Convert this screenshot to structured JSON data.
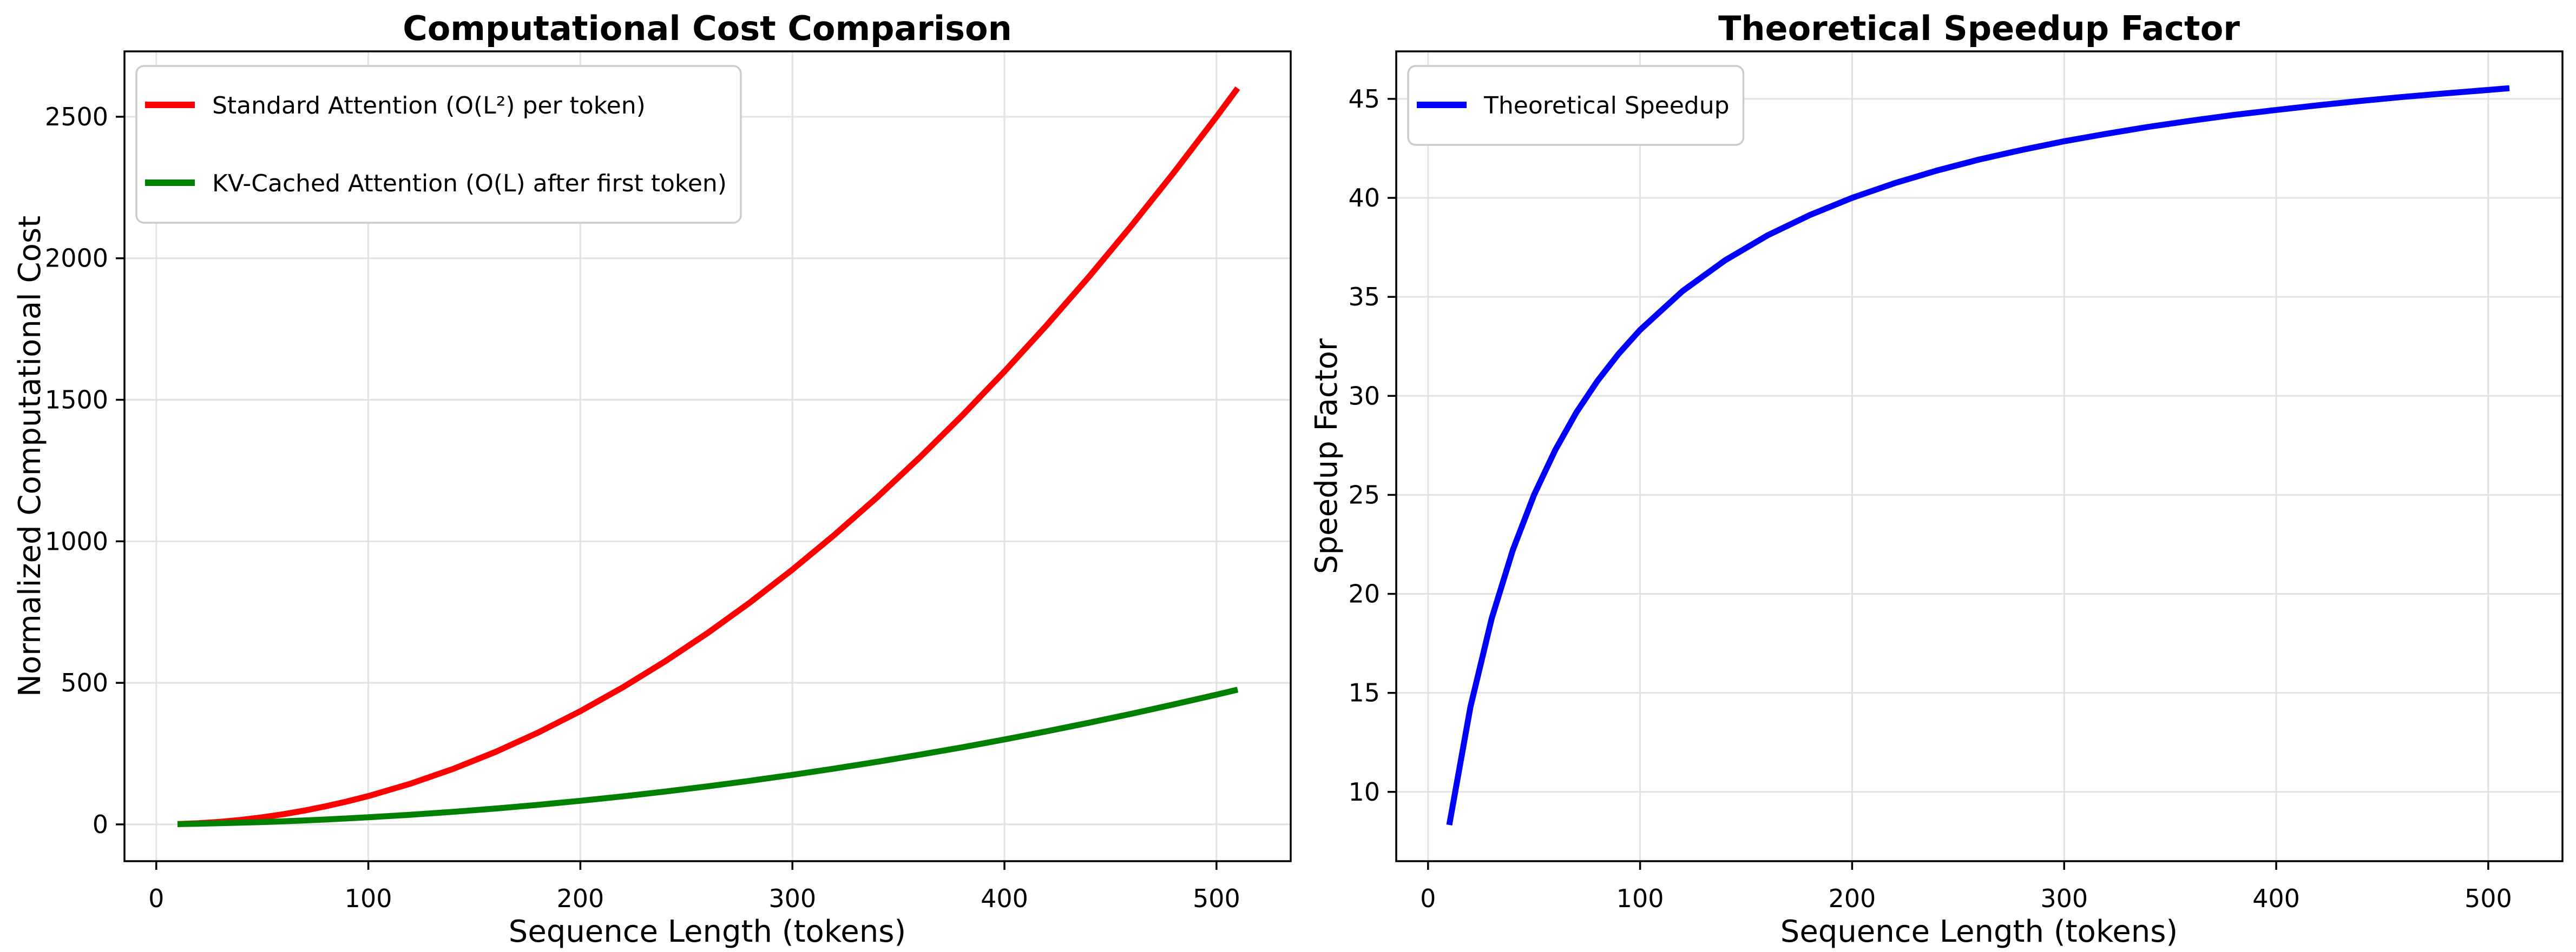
{
  "figure": {
    "background": "#ffffff",
    "grid_color": "#e2e2e2",
    "spine_color": "#000000",
    "text_color": "#000000"
  },
  "chart_data": [
    {
      "id": "computational-cost",
      "type": "line",
      "title": "Computational Cost Comparison",
      "xlabel": "Sequence Length (tokens)",
      "ylabel": "Normalized Computational Cost",
      "xlim": [
        -15,
        535
      ],
      "ylim": [
        -130,
        2731
      ],
      "xticks": [
        0,
        100,
        200,
        300,
        400,
        500
      ],
      "yticks": [
        0,
        500,
        1000,
        1500,
        2000,
        2500
      ],
      "grid": true,
      "legend_position": "upper-left",
      "x": [
        10,
        20,
        30,
        40,
        50,
        60,
        70,
        80,
        90,
        100,
        120,
        140,
        160,
        180,
        200,
        220,
        240,
        260,
        280,
        300,
        320,
        340,
        360,
        380,
        400,
        420,
        440,
        460,
        480,
        500,
        510
      ],
      "series": [
        {
          "name": "Standard Attention (O(L²) per token)",
          "color": "#ff0000",
          "values": [
            1,
            4,
            9,
            16,
            25,
            36,
            49,
            64,
            81,
            100,
            144,
            196,
            256,
            324,
            400,
            484,
            576,
            676,
            784,
            900,
            1024,
            1156,
            1296,
            1444,
            1600,
            1764,
            1936,
            2116,
            2304,
            2500,
            2601
          ]
        },
        {
          "name": "KV-Cached Attention (O(L) after first token)",
          "color": "#008000",
          "values": [
            1,
            2.3,
            4,
            6,
            8.3,
            11,
            14,
            17.3,
            21,
            25,
            34,
            44.3,
            56,
            69,
            83.3,
            99,
            116,
            134.3,
            154,
            175,
            197.3,
            221,
            246,
            272.3,
            300,
            329,
            359.3,
            391,
            424,
            458.3,
            476
          ]
        }
      ]
    },
    {
      "id": "speedup-factor",
      "type": "line",
      "title": "Theoretical Speedup Factor",
      "xlabel": "Sequence Length (tokens)",
      "ylabel": "Speedup Factor",
      "xlim": [
        -15,
        535
      ],
      "ylim": [
        6.5,
        47.4
      ],
      "xticks": [
        0,
        100,
        200,
        300,
        400,
        500
      ],
      "yticks": [
        10,
        15,
        20,
        25,
        30,
        35,
        40,
        45
      ],
      "grid": true,
      "legend_position": "upper-left",
      "x": [
        10,
        20,
        30,
        40,
        50,
        60,
        70,
        80,
        90,
        100,
        120,
        140,
        160,
        180,
        200,
        220,
        240,
        260,
        280,
        300,
        320,
        340,
        360,
        380,
        400,
        420,
        440,
        460,
        480,
        500,
        510
      ],
      "series": [
        {
          "name": "Theoretical Speedup",
          "color": "#0000ff",
          "values": [
            8.33,
            14.29,
            18.75,
            22.22,
            25.0,
            27.27,
            29.17,
            30.77,
            32.14,
            33.33,
            35.29,
            36.84,
            38.1,
            39.13,
            40.0,
            40.74,
            41.38,
            41.94,
            42.42,
            42.86,
            43.24,
            43.59,
            43.9,
            44.19,
            44.44,
            44.68,
            44.9,
            45.1,
            45.28,
            45.45,
            45.54
          ]
        }
      ]
    }
  ]
}
